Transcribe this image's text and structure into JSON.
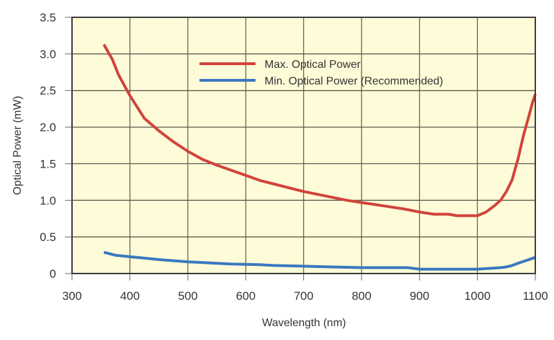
{
  "chart_data": {
    "type": "line",
    "title": "",
    "xlabel": "Wavelength (nm)",
    "ylabel": "Optical Power (mW)",
    "xlim": [
      300,
      1100
    ],
    "ylim": [
      0,
      3.5
    ],
    "xticks": [
      300,
      400,
      500,
      600,
      700,
      800,
      900,
      1000,
      1100
    ],
    "xtick_labels": [
      "300",
      "400",
      "500",
      "600",
      "700",
      "800",
      "900",
      "1000",
      "1100"
    ],
    "yticks": [
      0,
      0.5,
      1.0,
      1.5,
      2.0,
      2.5,
      3.0,
      3.5
    ],
    "ytick_labels": [
      "0",
      "0.5",
      "1.0",
      "1.5",
      "2.0",
      "2.5",
      "3.0",
      "3.5"
    ],
    "grid": true,
    "legend_position": "top-center",
    "background_color": "#fefbd8",
    "series": [
      {
        "name": "Max. Optical Power",
        "color": "#d1433b",
        "x": [
          355,
          370,
          380,
          400,
          425,
          450,
          475,
          500,
          525,
          550,
          575,
          600,
          625,
          650,
          675,
          700,
          725,
          750,
          775,
          800,
          825,
          850,
          875,
          900,
          925,
          950,
          965,
          1000,
          1015,
          1030,
          1040,
          1050,
          1060,
          1070,
          1080,
          1090,
          1095,
          1100
        ],
        "y": [
          3.13,
          2.92,
          2.72,
          2.43,
          2.12,
          1.95,
          1.8,
          1.67,
          1.56,
          1.48,
          1.41,
          1.34,
          1.27,
          1.22,
          1.17,
          1.12,
          1.08,
          1.04,
          1.0,
          0.97,
          0.94,
          0.91,
          0.88,
          0.84,
          0.81,
          0.81,
          0.79,
          0.79,
          0.84,
          0.93,
          1.0,
          1.12,
          1.28,
          1.56,
          1.9,
          2.18,
          2.33,
          2.45
        ]
      },
      {
        "name": "Min. Optical Power (Recommended)",
        "color": "#3a78c0",
        "x": [
          355,
          375,
          400,
          425,
          450,
          475,
          500,
          525,
          550,
          575,
          600,
          625,
          650,
          675,
          700,
          725,
          750,
          775,
          800,
          825,
          850,
          880,
          900,
          925,
          950,
          975,
          1000,
          1020,
          1040,
          1050,
          1060,
          1070,
          1085,
          1100
        ],
        "y": [
          0.29,
          0.25,
          0.23,
          0.21,
          0.19,
          0.175,
          0.16,
          0.15,
          0.14,
          0.13,
          0.125,
          0.12,
          0.11,
          0.105,
          0.1,
          0.095,
          0.09,
          0.085,
          0.08,
          0.08,
          0.08,
          0.08,
          0.06,
          0.06,
          0.06,
          0.06,
          0.06,
          0.07,
          0.08,
          0.09,
          0.11,
          0.14,
          0.18,
          0.22
        ]
      }
    ]
  }
}
